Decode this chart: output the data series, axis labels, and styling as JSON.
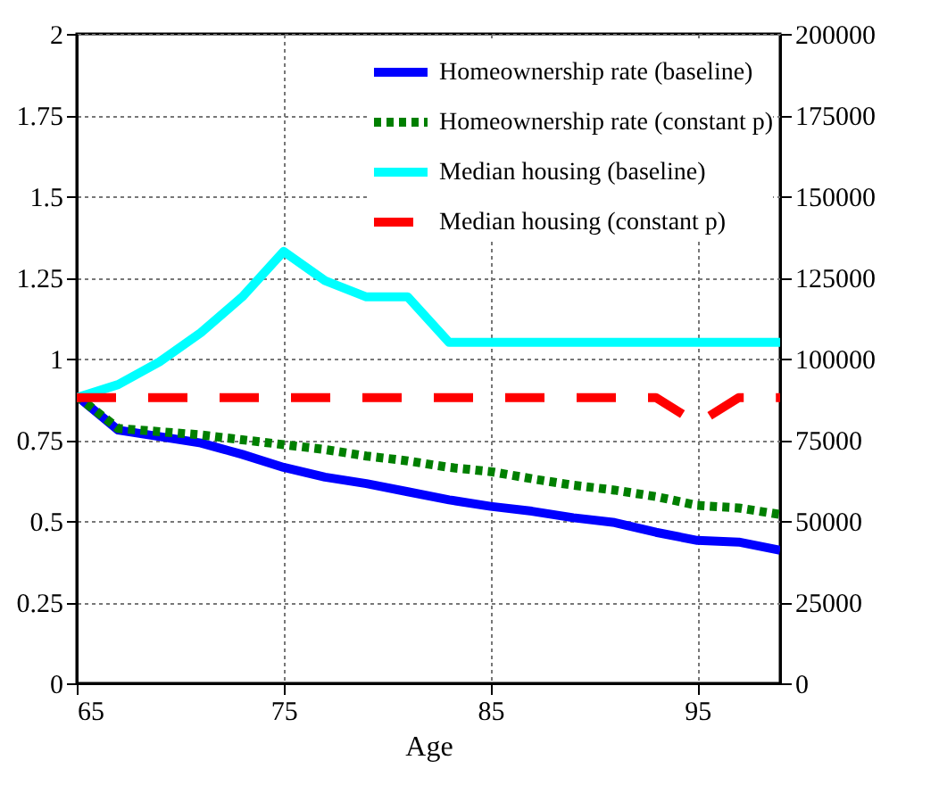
{
  "chart_data": {
    "type": "line",
    "xlabel": "Age",
    "x": [
      65,
      67,
      69,
      71,
      73,
      75,
      77,
      79,
      81,
      83,
      85,
      87,
      89,
      91,
      93,
      95,
      97,
      99
    ],
    "xlim": [
      65,
      99
    ],
    "xticks": [
      65,
      75,
      85,
      95
    ],
    "ylim": [
      0,
      2
    ],
    "yticks": [
      0,
      0.25,
      0.5,
      0.75,
      1,
      1.25,
      1.5,
      1.75,
      2
    ],
    "y2lim": [
      0,
      200000
    ],
    "y2ticks": [
      0,
      25000,
      50000,
      75000,
      100000,
      125000,
      150000,
      175000,
      200000
    ],
    "grid": true,
    "legend": "top right",
    "series": [
      {
        "name": "Homeownership rate (baseline)",
        "color": "#0000ff",
        "line_style": "solid",
        "values": [
          0.885,
          0.78,
          0.76,
          0.74,
          0.705,
          0.665,
          0.635,
          0.615,
          0.59,
          0.565,
          0.545,
          0.53,
          0.51,
          0.495,
          0.465,
          0.44,
          0.435,
          0.41
        ]
      },
      {
        "name": "Homeownership rate (constant p)",
        "color": "#007f00",
        "line_style": "dotted",
        "values": [
          0.885,
          0.785,
          0.775,
          0.765,
          0.75,
          0.735,
          0.72,
          0.7,
          0.685,
          0.665,
          0.652,
          0.63,
          0.61,
          0.595,
          0.575,
          0.548,
          0.54,
          0.52
        ]
      },
      {
        "name": "Median housing (baseline)",
        "color": "#00ffff",
        "line_style": "solid",
        "axis": "y2",
        "values": [
          88000,
          92000,
          99000,
          108000,
          119000,
          133000,
          124000,
          119000,
          119000,
          105000,
          105000,
          105000,
          105000,
          105000,
          105000,
          105000,
          105000,
          105000
        ]
      },
      {
        "name": "Median housing (constant p)",
        "color": "#ff0000",
        "line_style": "dashed",
        "axis": "y2",
        "values": [
          88000,
          88000,
          88000,
          88000,
          88000,
          88000,
          88000,
          88000,
          88000,
          88000,
          88000,
          88000,
          88000,
          88000,
          88000,
          80000,
          88000,
          88000
        ]
      }
    ]
  }
}
